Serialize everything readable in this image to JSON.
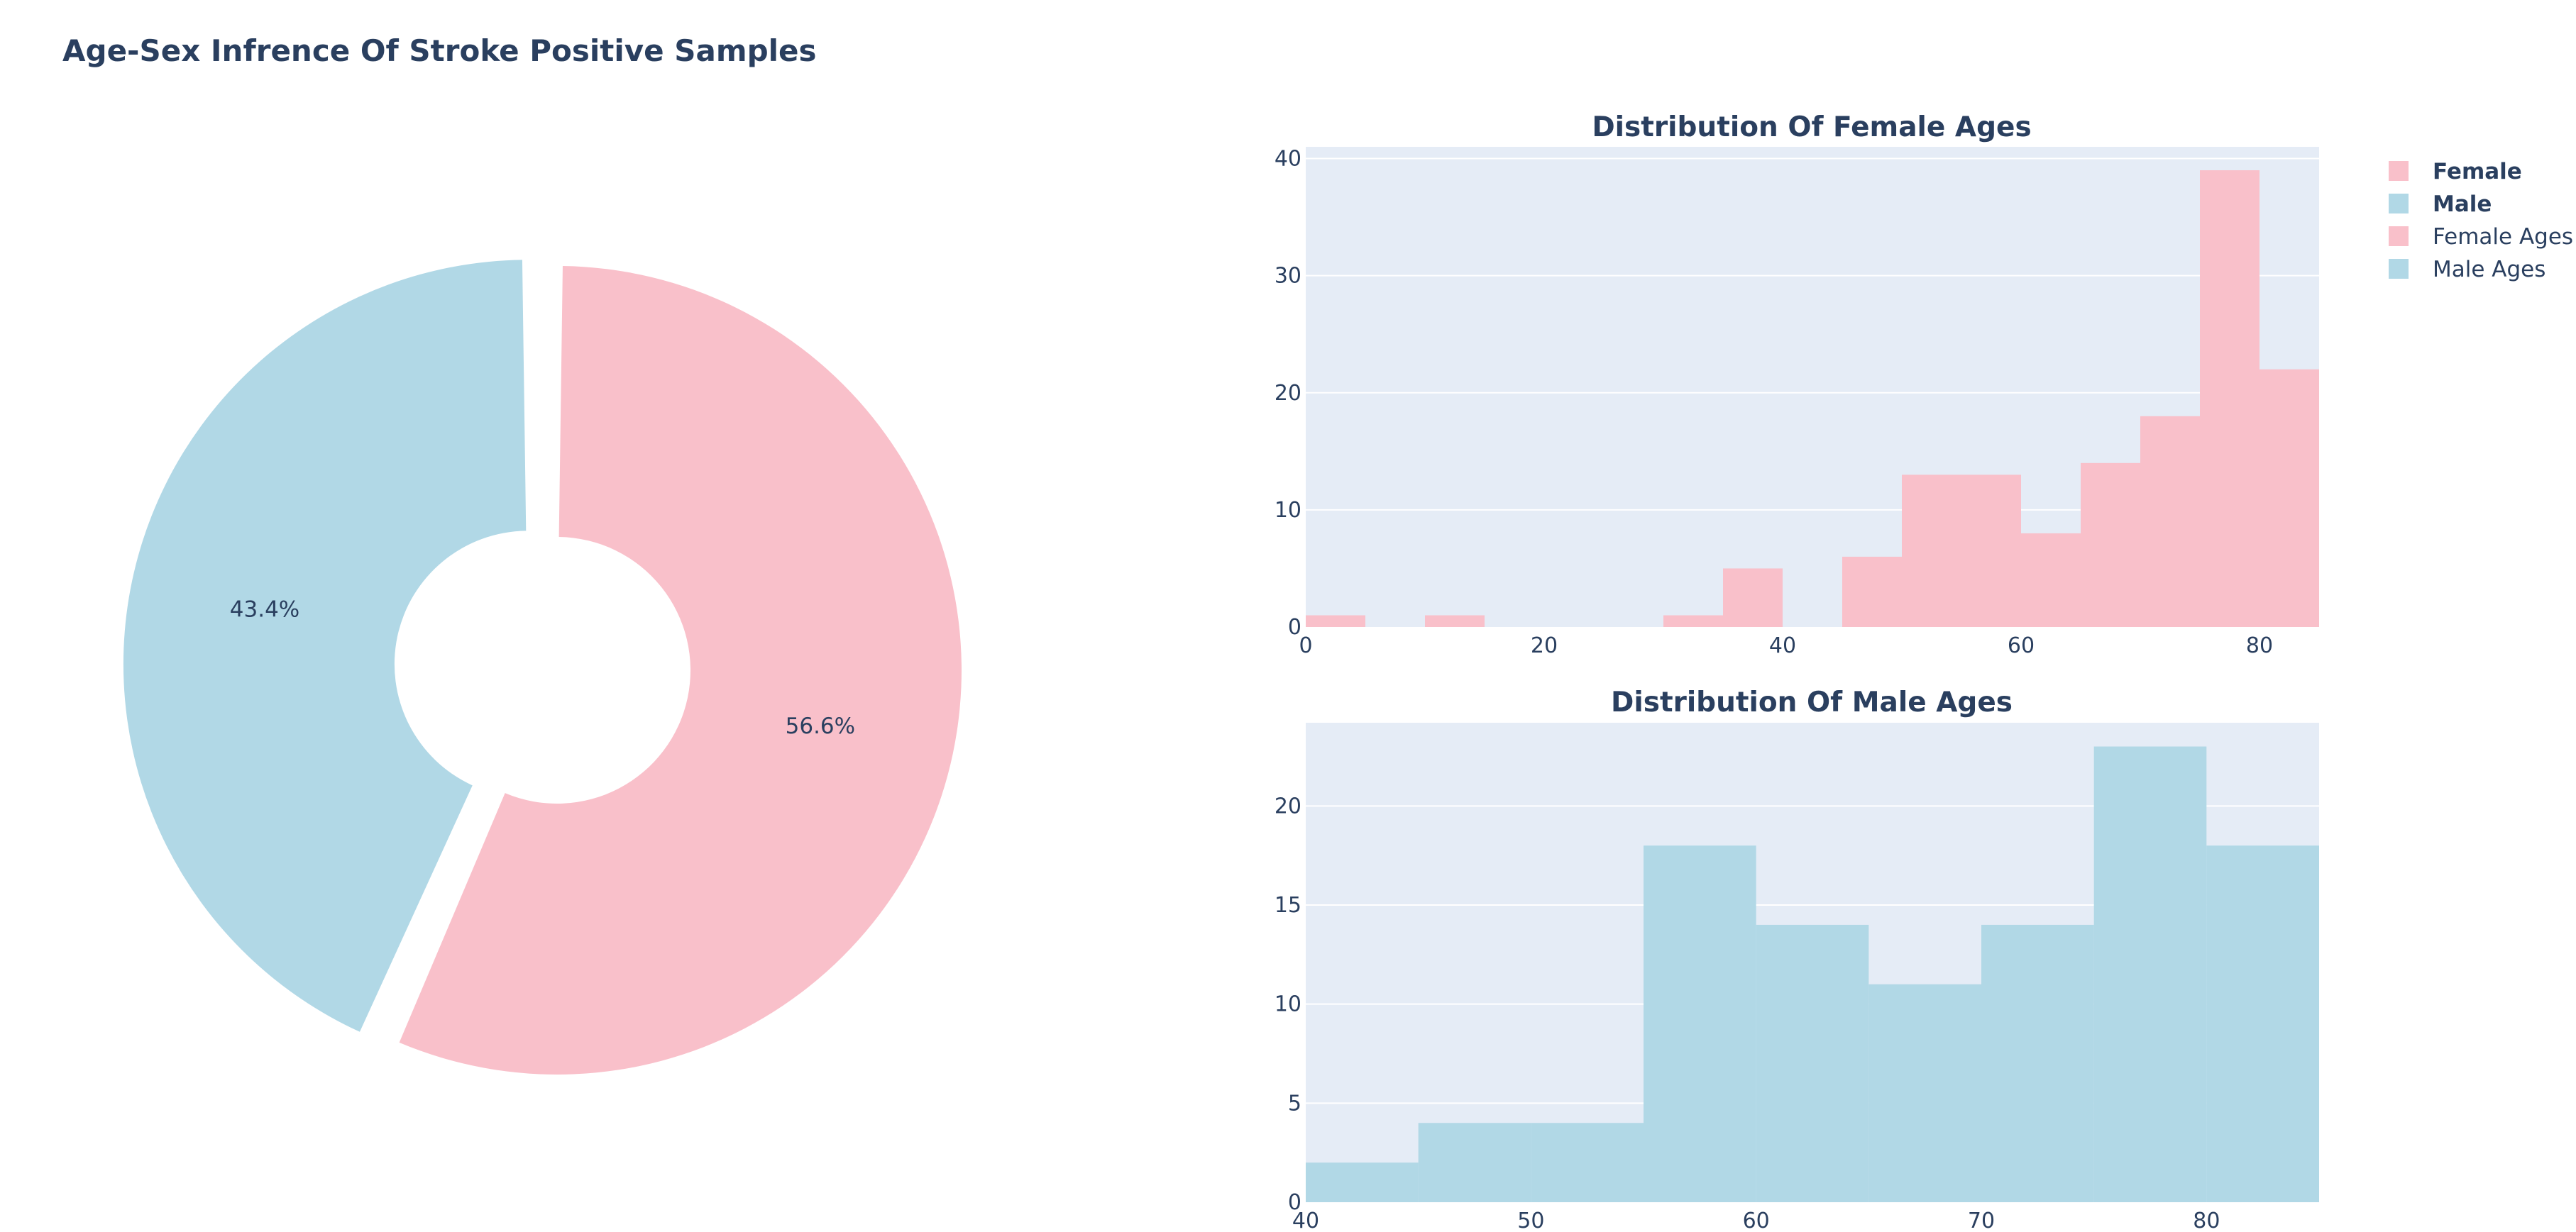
{
  "title": "Age-Sex Infrence Of Stroke Positive Samples",
  "colors": {
    "female": "#f9c0ca",
    "male": "#b1d8e6",
    "plot_bg": "#e5ecf6",
    "text": "#2a3f5f",
    "grid": "#ffffff"
  },
  "legend": {
    "placement": "top-right",
    "items": [
      {
        "label": "Female",
        "color": "#f9c0ca",
        "bold": true
      },
      {
        "label": "Male",
        "color": "#b1d8e6",
        "bold": true
      },
      {
        "label": "Female Ages",
        "color": "#f9c0ca",
        "bold": false
      },
      {
        "label": "Male Ages",
        "color": "#b1d8e6",
        "bold": false
      }
    ]
  },
  "chart_data": [
    {
      "type": "pie",
      "hole": true,
      "labels": [
        "Female",
        "Male"
      ],
      "values": [
        56.6,
        43.4
      ],
      "text_labels": [
        "56.6%",
        "43.4%"
      ],
      "colors": [
        "#f9c0ca",
        "#b1d8e6"
      ],
      "pulled": [
        "Male"
      ]
    },
    {
      "type": "bar",
      "title": "Distribution Of Female Ages",
      "bin_width": 5,
      "bins_start": [
        0,
        5,
        10,
        15,
        20,
        25,
        30,
        35,
        40,
        45,
        50,
        55,
        60,
        65,
        70,
        75,
        80
      ],
      "values": [
        1,
        0,
        1,
        0,
        0,
        0,
        1,
        5,
        0,
        6,
        13,
        13,
        8,
        14,
        18,
        39,
        22
      ],
      "xlim": [
        0,
        85
      ],
      "ylim": [
        0,
        41
      ],
      "x_ticks": [
        0,
        20,
        40,
        60,
        80
      ],
      "y_ticks": [
        0,
        10,
        20,
        30,
        40
      ],
      "grid": true,
      "color": "#f9c0ca"
    },
    {
      "type": "bar",
      "title": "Distribution Of Male Ages",
      "bin_width": 5,
      "bins_start": [
        40,
        45,
        50,
        55,
        60,
        65,
        70,
        75,
        80
      ],
      "values": [
        2,
        4,
        4,
        18,
        14,
        11,
        14,
        23,
        18
      ],
      "xlim": [
        40,
        85
      ],
      "ylim": [
        0,
        24.2
      ],
      "x_ticks": [
        40,
        50,
        60,
        70,
        80
      ],
      "y_ticks": [
        0,
        5,
        10,
        15,
        20
      ],
      "grid": true,
      "color": "#b1d8e6"
    }
  ]
}
